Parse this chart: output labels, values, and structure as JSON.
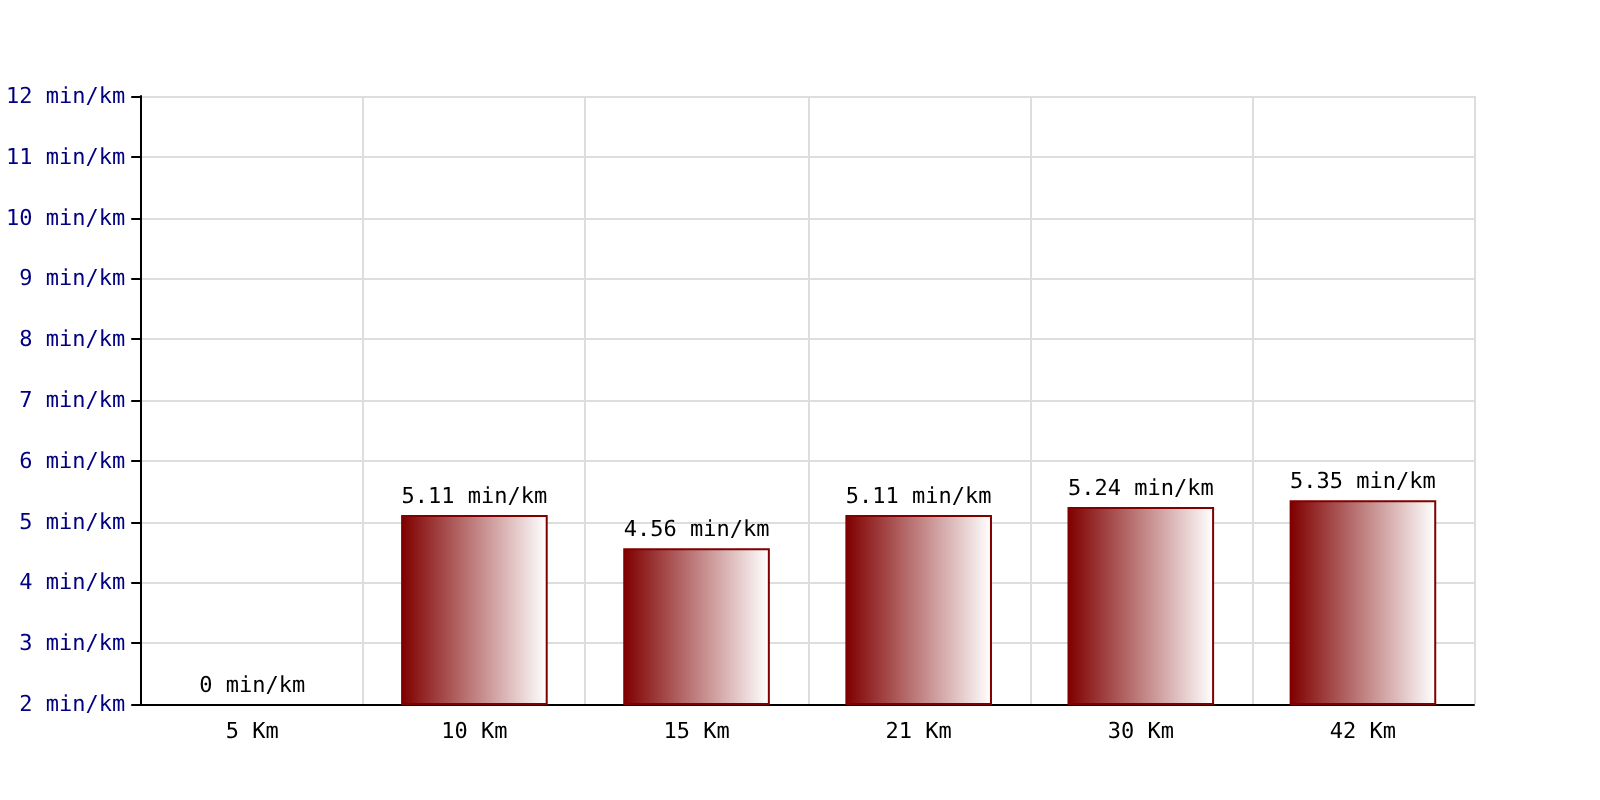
{
  "chart_data": {
    "type": "bar",
    "categories": [
      "5 Km",
      "10 Km",
      "15 Km",
      "21 Km",
      "30 Km",
      "42 Km"
    ],
    "values": [
      null,
      5.11,
      4.56,
      5.11,
      5.24,
      5.35
    ],
    "color": "#800000",
    "value_labels": [
      "0 min/km",
      "5.11 min/km",
      "4.56 min/km",
      "5.11 min/km",
      "5.24 min/km",
      "5.35 min/km"
    ],
    "ylim": [
      2,
      12
    ],
    "yticks": [
      {
        "value": 2,
        "label": "2 min/km"
      },
      {
        "value": 3,
        "label": "3 min/km"
      },
      {
        "value": 4,
        "label": "4 min/km"
      },
      {
        "value": 5,
        "label": "5 min/km"
      },
      {
        "value": 6,
        "label": "6 min/km"
      },
      {
        "value": 7,
        "label": "7 min/km"
      },
      {
        "value": 8,
        "label": "8 min/km"
      },
      {
        "value": 9,
        "label": "9 min/km"
      },
      {
        "value": 10,
        "label": "10 min/km"
      },
      {
        "value": 11,
        "label": "11 min/km"
      },
      {
        "value": 12,
        "label": "12 min/km"
      }
    ],
    "grid": true
  }
}
